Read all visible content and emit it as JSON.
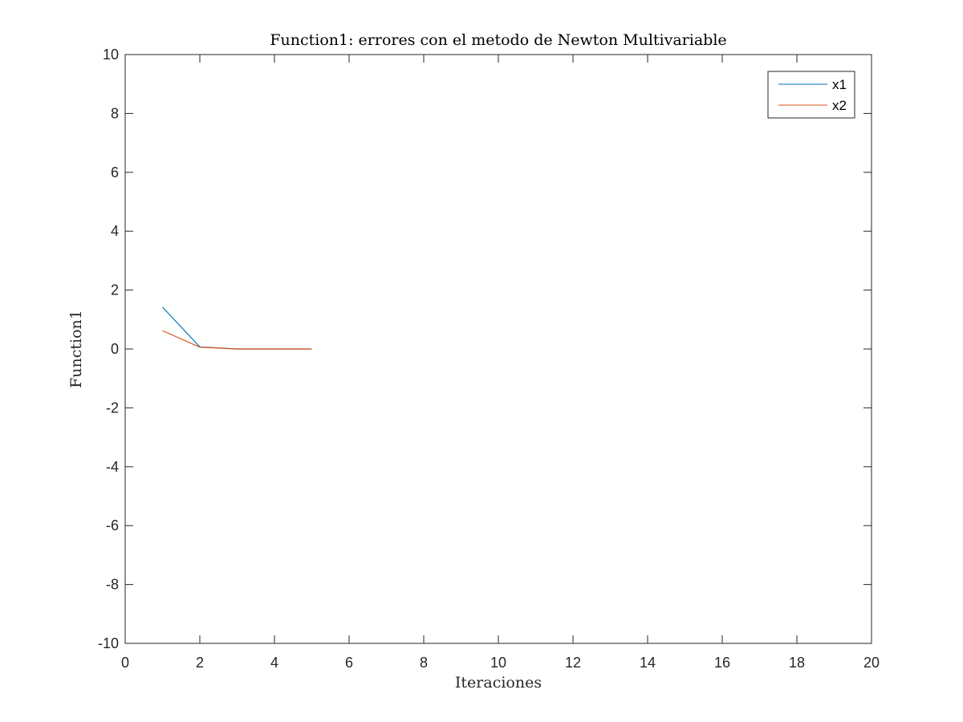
{
  "chart_data": {
    "type": "line",
    "title": "Function1: errores con el metodo de Newton Multivariable",
    "xlabel": "Iteraciones",
    "ylabel": "Function1",
    "xlim": [
      0,
      20
    ],
    "ylim": [
      -10,
      10
    ],
    "xticks": [
      "0",
      "2",
      "4",
      "6",
      "8",
      "10",
      "12",
      "14",
      "16",
      "18",
      "20"
    ],
    "yticks": [
      "10",
      "8",
      "6",
      "4",
      "2",
      "0",
      "-2",
      "-4",
      "-6",
      "-8",
      "-10"
    ],
    "grid": false,
    "legend_position": "top-right",
    "series": [
      {
        "name": "x1",
        "color": "#0072BD",
        "x": [
          1,
          2,
          3,
          4,
          5
        ],
        "y": [
          1.42,
          0.07,
          0.0,
          0.0,
          0.0
        ]
      },
      {
        "name": "x2",
        "color": "#D95319",
        "x": [
          1,
          2,
          3,
          4,
          5
        ],
        "y": [
          0.62,
          0.06,
          0.0,
          0.0,
          0.0
        ]
      }
    ]
  }
}
